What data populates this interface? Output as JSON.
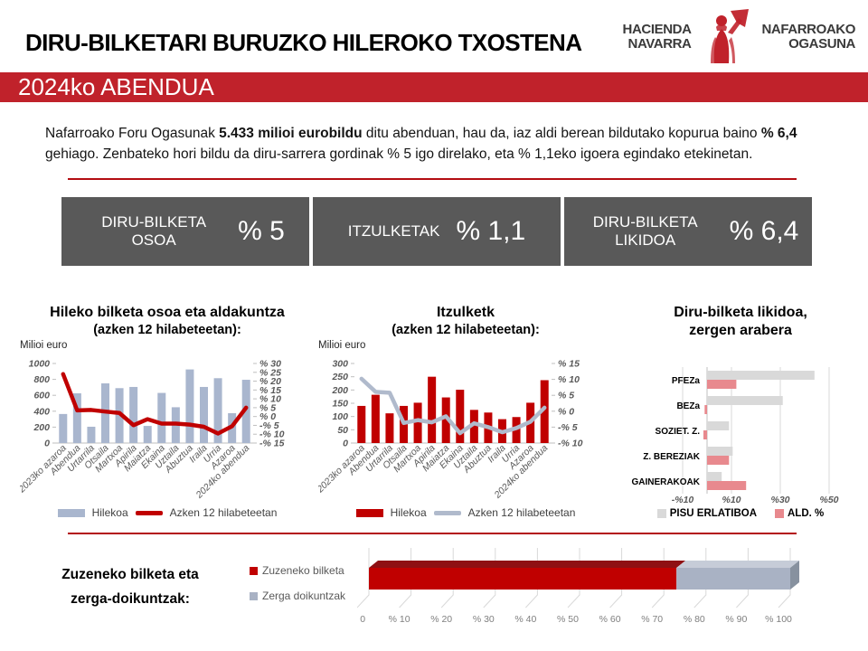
{
  "header": {
    "title": "DIRU-BILKETARI BURUZKO HILEROKO TXOSTENA",
    "logo": {
      "left_line1": "HACIENDA",
      "left_line2": "NAVARRA",
      "right_line1": "NAFARROAKO",
      "right_line2": "OGASUNA",
      "emblem_icon": "navarra-figure-emblem"
    }
  },
  "banner": {
    "text": "2024ko ABENDUA",
    "bg": "#c0222b"
  },
  "intro": {
    "p1": "Nafarroako Foru Ogasunak ",
    "b1": "5.433 milioi eurobildu",
    "p2": " ditu abenduan, hau da, iaz aldi berean bildutako kopurua baino ",
    "b2": "% 6,4",
    "p3": " gehiago. Zenbateko hori bildu da diru-sarrera gordinak % 5 igo direlako, eta % 1,1eko igoera egindako etekinetan."
  },
  "colors": {
    "rule": "#b30d12",
    "kpi_bg": "#595959",
    "bar_blue": "#a9b6ce",
    "red": "#c00000",
    "line_gray": "#b0bacc",
    "light_gray_bar": "#d9d9d9",
    "salmon": "#e8898e",
    "steel": "#a9b2c4"
  },
  "kpis": [
    {
      "label": "DIRU-BILKETA OSOA",
      "value": "% 5"
    },
    {
      "label": "ITZULKETAK",
      "value": "% 1,1"
    },
    {
      "label": "DIRU-BILKETA LIKIDOA",
      "value": "% 6,4"
    }
  ],
  "chart_data": [
    {
      "type": "bar+line",
      "title": "Hileko bilketa osoa eta aldakuntza",
      "subtitle": "(azken 12 hilabeteetan):",
      "unit": "Milioi euro",
      "categories": [
        "2023ko azaroa",
        "Abendua",
        "Urtarrila",
        "Otsaila",
        "Martxoa",
        "Apirila",
        "Maiatza",
        "Ekaina",
        "Uztaila",
        "Abuztua",
        "Iraila",
        "Urria",
        "Azaroa",
        "2024ko abendua"
      ],
      "series": [
        {
          "name": "Hilekoa",
          "kind": "bar",
          "axis": "left",
          "color": "#a9b6ce",
          "values": [
            365,
            625,
            205,
            750,
            690,
            705,
            215,
            630,
            450,
            925,
            705,
            815,
            375,
            795
          ]
        },
        {
          "name": "Azken 12 hilabeteetan",
          "kind": "line",
          "axis": "right",
          "color": "#c00000",
          "values": [
            24,
            3.5,
            3.7,
            2.8,
            2,
            -4.9,
            -1.5,
            -4,
            -4,
            -4.6,
            -5.8,
            -9.6,
            -5.5,
            5
          ]
        }
      ],
      "left_axis": {
        "min": 0,
        "max": 1000,
        "ticks": [
          {
            "v": 0,
            "label": "0"
          },
          {
            "v": 200,
            "label": "200"
          },
          {
            "v": 400,
            "label": "400"
          },
          {
            "v": 600,
            "label": "600"
          },
          {
            "v": 800,
            "label": "800"
          },
          {
            "v": 1000,
            "label": "1000"
          }
        ]
      },
      "right_axis": {
        "min": -15,
        "max": 30,
        "ticks": [
          {
            "v": 30,
            "label": "% 30"
          },
          {
            "v": 25,
            "label": "% 25"
          },
          {
            "v": 20,
            "label": "% 20"
          },
          {
            "v": 15,
            "label": "% 15"
          },
          {
            "v": 10,
            "label": "% 10"
          },
          {
            "v": 5,
            "label": "% 5"
          },
          {
            "v": 0,
            "label": "% 0"
          },
          {
            "v": -5,
            "label": "-% 5"
          },
          {
            "v": -10,
            "label": "-% 10"
          },
          {
            "v": -15,
            "label": "-% 15"
          }
        ]
      },
      "legend_position": "bottom"
    },
    {
      "type": "bar+line",
      "title": "Itzulketk",
      "subtitle": "(azken 12 hilabeteetan):",
      "unit": "Milioi euro",
      "categories": [
        "2023ko azaroa",
        "Abendua",
        "Urtarrila",
        "Otsaila",
        "Martxoa",
        "Apirila",
        "Maiatza",
        "Ekaina",
        "Uztaila",
        "Abuztua",
        "Iraila",
        "Urria",
        "Azaroa",
        "2024ko abendua"
      ],
      "series": [
        {
          "name": "Hilekoa",
          "kind": "bar",
          "axis": "left",
          "color": "#c00000",
          "values": [
            140,
            182,
            112,
            140,
            152,
            250,
            172,
            201,
            125,
            115,
            90,
            98,
            152,
            237
          ]
        },
        {
          "name": "Azken 12 hilabeteetan",
          "kind": "line",
          "axis": "right",
          "color": "#b0bacc",
          "values": [
            10.2,
            6.1,
            5.8,
            -3.7,
            -2.8,
            -3.5,
            -1.6,
            -6.9,
            -3.8,
            -5,
            -6.6,
            -5.3,
            -3.3,
            1.1
          ]
        }
      ],
      "left_axis": {
        "min": 0,
        "max": 300,
        "ticks": [
          {
            "v": 0,
            "label": "0"
          },
          {
            "v": 50,
            "label": "50"
          },
          {
            "v": 100,
            "label": "100"
          },
          {
            "v": 150,
            "label": "150"
          },
          {
            "v": 200,
            "label": "200"
          },
          {
            "v": 250,
            "label": "250"
          },
          {
            "v": 300,
            "label": "300"
          }
        ]
      },
      "right_axis": {
        "min": -10,
        "max": 15,
        "ticks": [
          {
            "v": 15,
            "label": "% 15"
          },
          {
            "v": 10,
            "label": "% 10"
          },
          {
            "v": 5,
            "label": "% 5"
          },
          {
            "v": 0,
            "label": "% 0"
          },
          {
            "v": -5,
            "label": "-% 5"
          },
          {
            "v": -10,
            "label": "-% 10"
          }
        ]
      },
      "legend_position": "bottom"
    },
    {
      "type": "hbar-grouped",
      "title": "Diru-bilketa likidoa,",
      "subtitle": "zergen arabera",
      "categories": [
        "PFEZa",
        "BEZa",
        "SOZIET. Z.",
        "Z. BEREZIAK",
        "GAINERAKOAK"
      ],
      "series": [
        {
          "name": "PISU ERLATIBOA",
          "color": "#d9d9d9",
          "values": [
            44,
            31,
            9,
            10.5,
            6
          ]
        },
        {
          "name": "ALD. %",
          "color": "#e8898e",
          "values": [
            12,
            -1,
            -1.5,
            9,
            16
          ]
        }
      ],
      "x_axis": {
        "min": -10,
        "max": 50,
        "ticks": [
          {
            "v": -10,
            "label": "-%10"
          },
          {
            "v": 10,
            "label": "%10"
          },
          {
            "v": 30,
            "label": "%30"
          },
          {
            "v": 50,
            "label": "%50"
          }
        ]
      },
      "legend_position": "bottom"
    },
    {
      "type": "hbar-stacked-3d",
      "title": "Zuzeneko bilketa eta zerga-doikuntzak:",
      "title_line1": "Zuzeneko bilketa eta",
      "title_line2": "zerga-doikuntzak:",
      "segments": [
        {
          "name": "Zuzeneko bilketa",
          "color": "#c00000",
          "value": 73
        },
        {
          "name": "Zerga doikuntzak",
          "color": "#a9b2c4",
          "value": 27
        }
      ],
      "x_axis": {
        "min": 0,
        "max": 100,
        "ticks": [
          {
            "v": 0,
            "label": "% 0"
          },
          {
            "v": 10,
            "label": "% 10"
          },
          {
            "v": 20,
            "label": "% 20"
          },
          {
            "v": 30,
            "label": "% 30"
          },
          {
            "v": 40,
            "label": "% 40"
          },
          {
            "v": 50,
            "label": "% 50"
          },
          {
            "v": 60,
            "label": "% 60"
          },
          {
            "v": 70,
            "label": "% 70"
          },
          {
            "v": 80,
            "label": "% 80"
          },
          {
            "v": 90,
            "label": "% 90"
          },
          {
            "v": 100,
            "label": "% 100"
          }
        ]
      }
    }
  ]
}
